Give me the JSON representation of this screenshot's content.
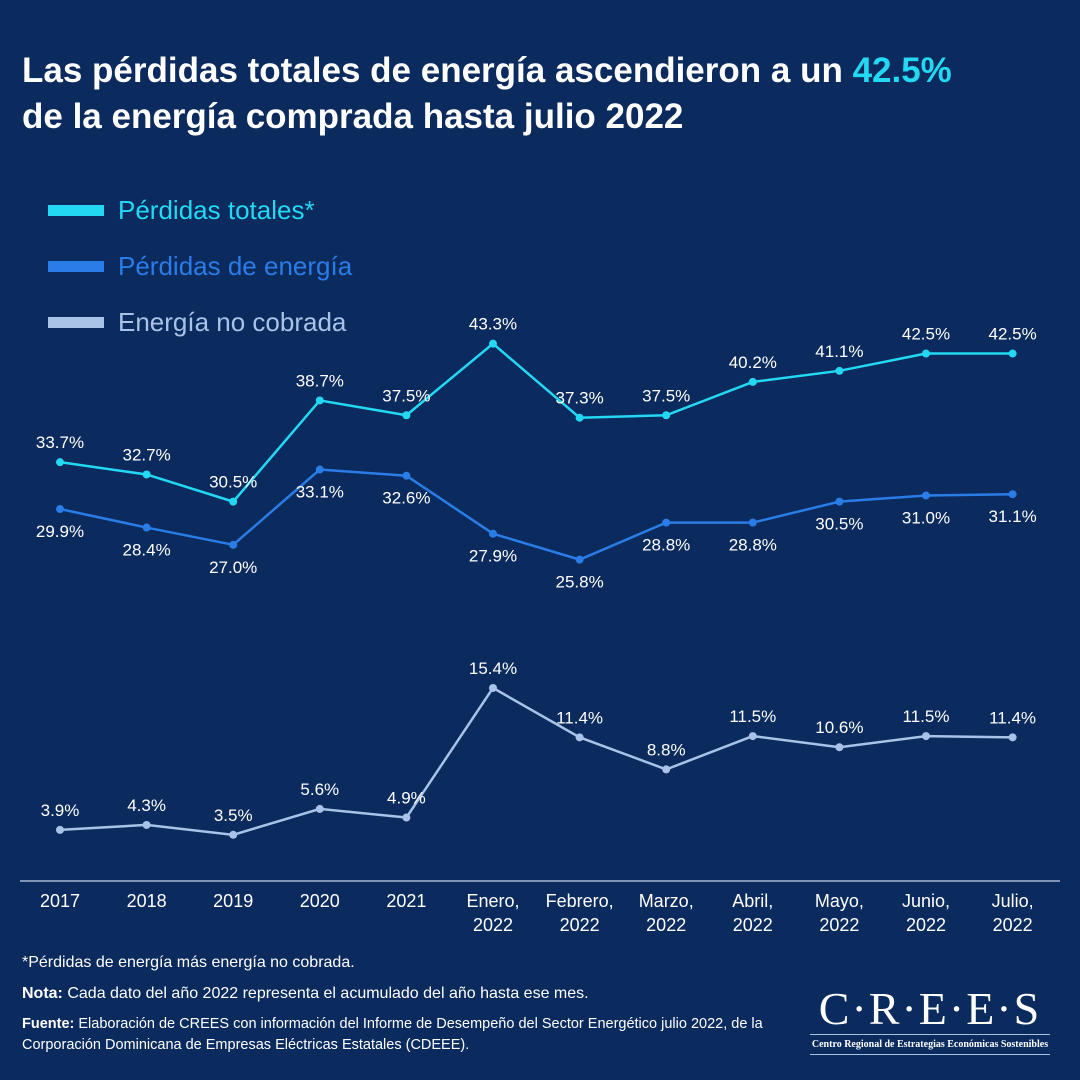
{
  "title": {
    "part1": "Las pérdidas totales de energía ascendieron a un ",
    "highlight": "42.5%",
    "part2": "de la energía comprada hasta julio 2022"
  },
  "colors": {
    "background": "#0b2a5e",
    "totales": "#23d8f2",
    "perdidas": "#2a7de6",
    "no_cobrada": "#a9c3e8",
    "highlight": "#23d8f2"
  },
  "chart_data": {
    "type": "line",
    "categories": [
      "2017",
      "2018",
      "2019",
      "2020",
      "2021",
      "Enero, 2022",
      "Febrero, 2022",
      "Marzo, 2022",
      "Abril, 2022",
      "Mayo, 2022",
      "Junio, 2022",
      "Julio, 2022"
    ],
    "series": [
      {
        "name": "Pérdidas totales*",
        "color": "#23d8f2",
        "label_pos": "above",
        "values": [
          33.7,
          32.7,
          30.5,
          38.7,
          37.5,
          43.3,
          37.3,
          37.5,
          40.2,
          41.1,
          42.5,
          42.5
        ]
      },
      {
        "name": "Pérdidas de energía",
        "color": "#2a7de6",
        "label_pos": "below",
        "values": [
          29.9,
          28.4,
          27.0,
          33.1,
          32.6,
          27.9,
          25.8,
          28.8,
          28.8,
          30.5,
          31.0,
          31.1
        ]
      },
      {
        "name": "Energía no cobrada",
        "color": "#a9c3e8",
        "label_pos": "above",
        "values": [
          3.9,
          4.3,
          3.5,
          5.6,
          4.9,
          15.4,
          11.4,
          8.8,
          11.5,
          10.6,
          11.5,
          11.4
        ]
      }
    ],
    "value_suffix": "%",
    "ylim": [
      0,
      45
    ],
    "grid": false,
    "legend_placement": "top-left"
  },
  "notes": {
    "footnote": "*Pérdidas de energía más energía no cobrada.",
    "nota_label": "Nota:",
    "nota_text": " Cada dato del año 2022 representa el acumulado del año hasta ese mes.",
    "fuente_label": "Fuente:",
    "fuente_text": " Elaboración de CREES con información del Informe de Desempeño del Sector Energético julio 2022, de la Corporación Dominicana de Empresas Eléctricas Estatales (CDEEE)."
  },
  "logo": {
    "name": "C·R·E·E·S",
    "subtitle": "Centro Regional de Estrategias Económicas Sostenibles"
  }
}
